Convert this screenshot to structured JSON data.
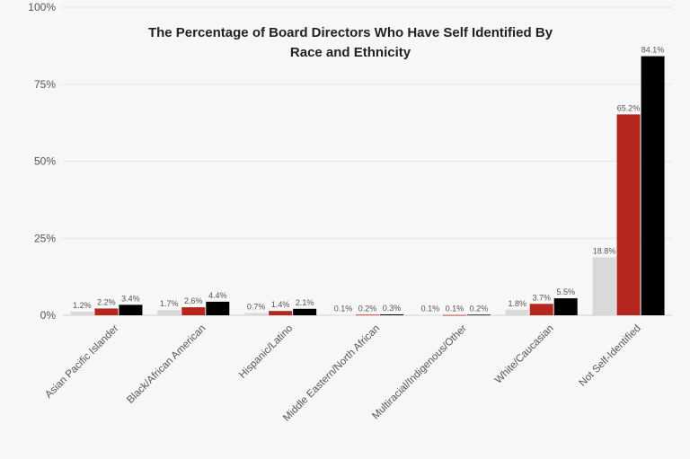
{
  "chart_data": {
    "type": "bar",
    "title": "The Percentage of Board Directors Who Have Self Identified By Race and Ethnicity",
    "xlabel": "",
    "ylabel": "",
    "categories": [
      "Asian Pacific Islander",
      "Black/African American",
      "Hispanic/Latino",
      "Middle Eastern/North African",
      "Multiracial/Indigenous/Other",
      "White/Caucasian",
      "Not Self-Identified"
    ],
    "series": [
      {
        "color": "#d9d9d9",
        "values": [
          1.2,
          1.7,
          0.7,
          0.1,
          0.1,
          1.8,
          18.8
        ]
      },
      {
        "color": "#b5261e",
        "values": [
          2.2,
          2.6,
          1.4,
          0.2,
          0.1,
          3.7,
          65.2
        ]
      },
      {
        "color": "#000000",
        "values": [
          3.4,
          4.4,
          2.1,
          0.3,
          0.2,
          5.5,
          84.1
        ]
      }
    ],
    "ylim": [
      0,
      100
    ],
    "yticks": [
      0,
      25,
      50,
      75,
      100
    ],
    "ytick_labels": [
      "0%",
      "25%",
      "50%",
      "75%",
      "100%"
    ],
    "value_suffix": "%",
    "grid": true,
    "legend": "none"
  }
}
